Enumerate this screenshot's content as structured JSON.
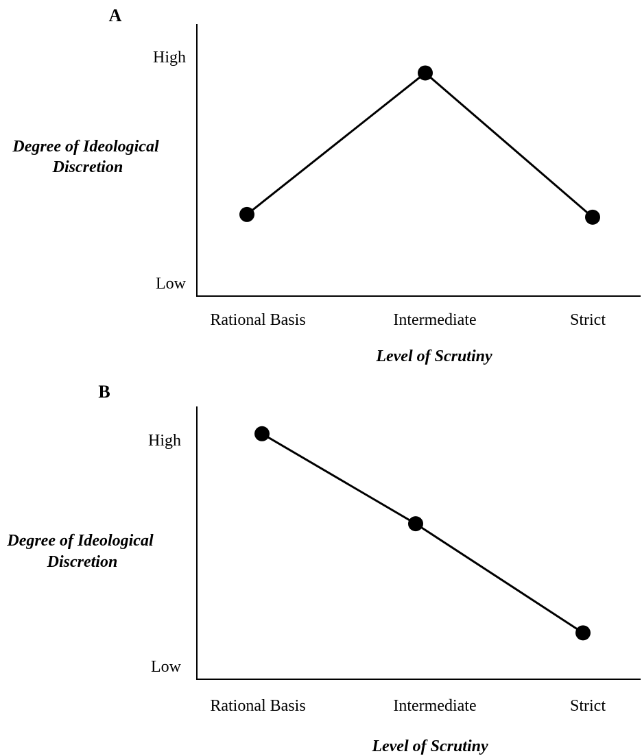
{
  "chart_data": [
    {
      "type": "line",
      "panel_label": "A",
      "categories": [
        "Rational Basis",
        "Intermediate",
        "Strict"
      ],
      "y_tick_labels": [
        "High",
        "Low"
      ],
      "values": [
        0.3,
        0.82,
        0.29
      ],
      "ylim": [
        0,
        1
      ],
      "xlabel": "Level of Scrutiny",
      "ylabel_lines": [
        "Degree of Ideological",
        "Discretion"
      ],
      "grid": false,
      "line_color": "#000000",
      "marker_color": "#000000"
    },
    {
      "type": "line",
      "panel_label": "B",
      "categories": [
        "Rational Basis",
        "Intermediate",
        "Strict"
      ],
      "y_tick_labels": [
        "High",
        "Low"
      ],
      "values": [
        0.9,
        0.57,
        0.17
      ],
      "ylim": [
        0,
        1
      ],
      "xlabel": "Level of Scrutiny",
      "ylabel_lines": [
        "Degree of Ideological",
        "Discretion"
      ],
      "grid": false,
      "line_color": "#000000",
      "marker_color": "#000000"
    }
  ]
}
